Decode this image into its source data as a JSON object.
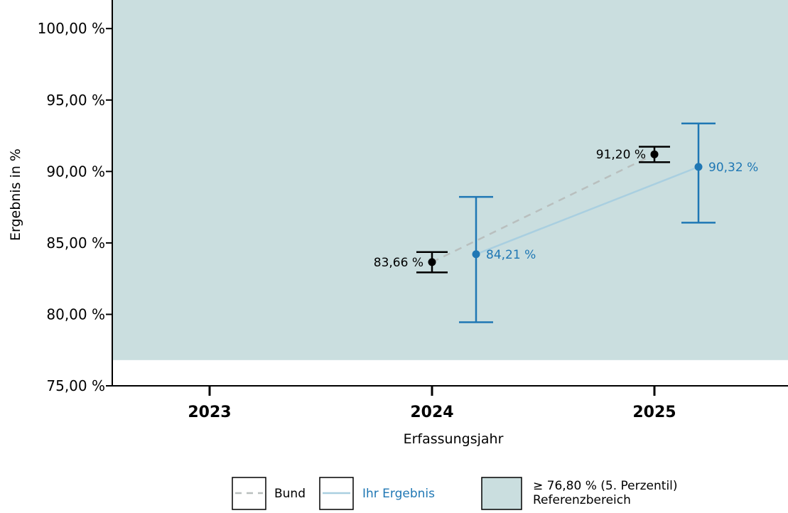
{
  "chart_data": {
    "type": "line",
    "xlabel": "Erfassungsjahr",
    "ylabel": "Ergebnis in %",
    "categories": [
      "2023",
      "2024",
      "2025"
    ],
    "ylim": [
      75,
      102
    ],
    "yticks": [
      75,
      80,
      85,
      90,
      95,
      100
    ],
    "ytick_labels": [
      "75,00 %",
      "80,00 %",
      "85,00 %",
      "90,00 %",
      "95,00 %",
      "100,00 %"
    ],
    "grid": false,
    "reference_area": {
      "min": 76.8,
      "label_line1": "≥ 76,80 % (5. Perzentil)",
      "label_line2": "Referenzbereich",
      "color": "#cadedf"
    },
    "series": [
      {
        "name": "Bund",
        "color": "#000000",
        "line_color": "#b9bfbe",
        "line_style": "dashed",
        "points": [
          {
            "x": "2024",
            "y": 83.66,
            "ci": [
              82.94,
              84.36
            ],
            "label": "83,66 %"
          },
          {
            "x": "2025",
            "y": 91.2,
            "ci": [
              90.65,
              91.73
            ],
            "label": "91,20 %"
          }
        ]
      },
      {
        "name": "Ihr Ergebnis",
        "color": "#1f77b4",
        "line_color": "#a9cfe0",
        "line_style": "solid",
        "points": [
          {
            "x": "2024",
            "y": 84.21,
            "ci": [
              79.45,
              88.22
            ],
            "label": "84,21 %"
          },
          {
            "x": "2025",
            "y": 90.32,
            "ci": [
              86.42,
              93.36
            ],
            "label": "90,32 %"
          }
        ]
      }
    ],
    "legend": {
      "position": "bottom",
      "items": [
        {
          "label": "Bund",
          "style": "dashed",
          "color": "#b9bfbe",
          "text_color": "#000000"
        },
        {
          "label": "Ihr Ergebnis",
          "style": "solid",
          "color": "#a9cfe0",
          "text_color": "#1f77b4"
        }
      ]
    }
  }
}
